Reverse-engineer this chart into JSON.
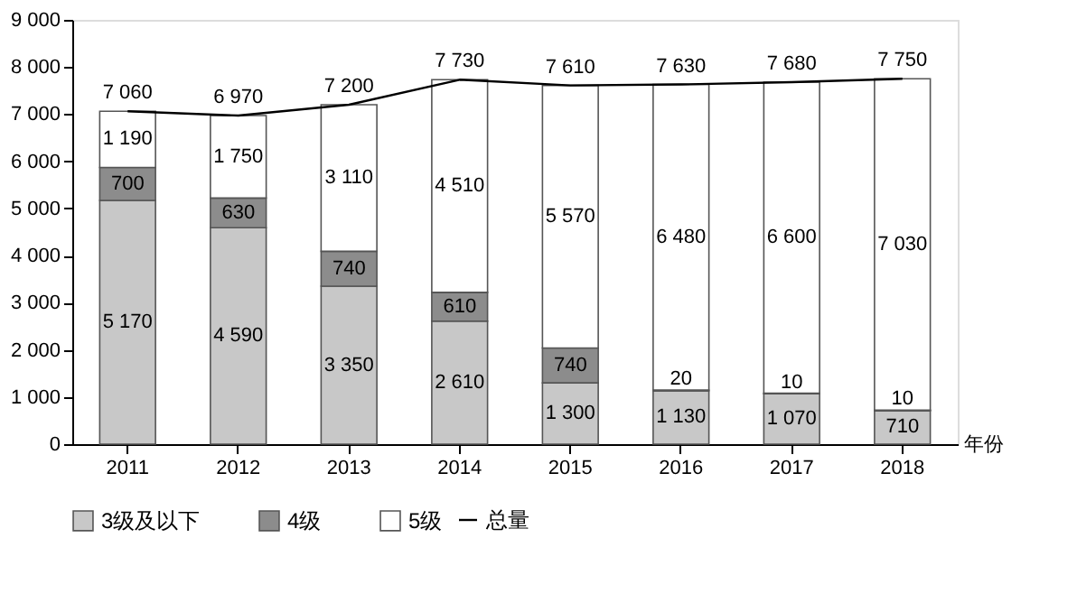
{
  "chart_data": {
    "type": "bar",
    "stacked": true,
    "categories": [
      "2011",
      "2012",
      "2013",
      "2014",
      "2015",
      "2016",
      "2017",
      "2018"
    ],
    "xlabel": "年份",
    "ylim": [
      0,
      9000
    ],
    "yticks": [
      0,
      {
        "value": 1000,
        "label": "1 000"
      },
      {
        "value": 2000,
        "label": "2 000"
      },
      {
        "value": 3000,
        "label": "3 000"
      },
      {
        "value": 4000,
        "label": "4 000"
      },
      {
        "value": 5000,
        "label": "5 000"
      },
      {
        "value": 6000,
        "label": "6 000"
      },
      {
        "value": 7000,
        "label": "7 000"
      },
      {
        "value": 8000,
        "label": "8 000"
      },
      {
        "value": 9000,
        "label": "9 000"
      }
    ],
    "legend": "bottom",
    "grid": false,
    "series": [
      {
        "name": "3级及以下",
        "color": "#c8c8c8",
        "values": [
          5170,
          4590,
          3350,
          2610,
          1300,
          1130,
          1070,
          710
        ],
        "value_labels": [
          "5 170",
          "4 590",
          "3 350",
          "2 610",
          "1 300",
          "1 130",
          "1 070",
          "710"
        ]
      },
      {
        "name": "4级",
        "color": "#8c8c8c",
        "values": [
          700,
          630,
          740,
          610,
          740,
          20,
          10,
          10
        ],
        "value_labels": [
          "700",
          "630",
          "740",
          "610",
          "740",
          "20",
          "10",
          "10"
        ]
      },
      {
        "name": "5级",
        "color": "#ffffff",
        "values": [
          1190,
          1750,
          3110,
          4510,
          5570,
          6480,
          6600,
          7030
        ],
        "value_labels": [
          "1 190",
          "1 750",
          "3 110",
          "4 510",
          "5 570",
          "6 480",
          "6 600",
          "7 030"
        ]
      },
      {
        "name": "总量",
        "type": "line",
        "color": "#000000",
        "values": [
          7060,
          6970,
          7200,
          7730,
          7610,
          7630,
          7680,
          7750
        ],
        "value_labels": [
          "7 060",
          "6 970",
          "7 200",
          "7 730",
          "7 610",
          "7 630",
          "7 680",
          "7 750"
        ]
      }
    ]
  }
}
